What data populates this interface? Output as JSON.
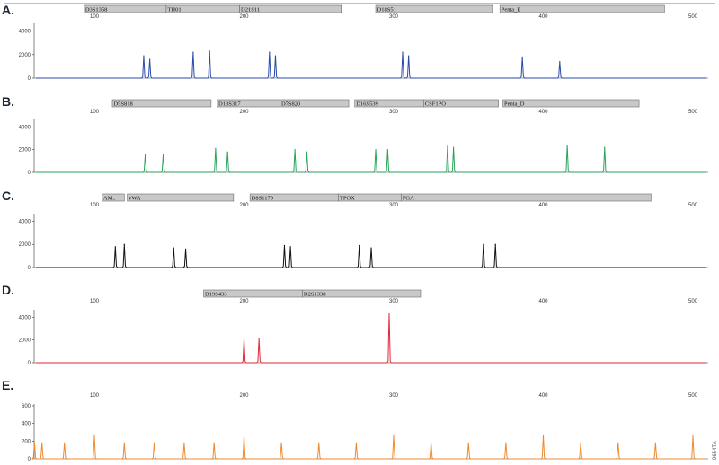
{
  "note": "9654TA",
  "chart_data": [
    {
      "type": "line",
      "panel": "A.",
      "color": "#2a4aa8",
      "x_ticks": [
        "100",
        "200",
        "300",
        "400",
        "500"
      ],
      "xlim": [
        50,
        520
      ],
      "y_ticks": [
        "4000",
        "2000",
        "0"
      ],
      "ylim": [
        0,
        4500
      ],
      "loci": [
        {
          "label": "D3S1358",
          "start": 93,
          "end": 148
        },
        {
          "label": "TH01",
          "start": 148,
          "end": 197
        },
        {
          "label": "D21S11",
          "start": 197,
          "end": 265
        },
        {
          "label": "D18S51",
          "start": 288,
          "end": 366
        },
        {
          "label": "Penta_E",
          "start": 371,
          "end": 481
        }
      ],
      "peaks": [
        {
          "x": 133,
          "y": 1900
        },
        {
          "x": 137,
          "y": 1600
        },
        {
          "x": 166,
          "y": 2200
        },
        {
          "x": 177,
          "y": 2300
        },
        {
          "x": 217,
          "y": 2200
        },
        {
          "x": 221,
          "y": 1900
        },
        {
          "x": 306,
          "y": 2200
        },
        {
          "x": 310,
          "y": 1900
        },
        {
          "x": 386,
          "y": 1800
        },
        {
          "x": 411,
          "y": 1400
        }
      ]
    },
    {
      "type": "line",
      "panel": "B.",
      "color": "#27a35a",
      "x_ticks": [
        "100",
        "200",
        "300",
        "400",
        "500"
      ],
      "xlim": [
        50,
        520
      ],
      "y_ticks": [
        "4000",
        "2000",
        "0"
      ],
      "ylim": [
        0,
        4500
      ],
      "loci": [
        {
          "label": "D5S818",
          "start": 112,
          "end": 178
        },
        {
          "label": "D13S317",
          "start": 182,
          "end": 224
        },
        {
          "label": "D7S820",
          "start": 224,
          "end": 270
        },
        {
          "label": "D16S539",
          "start": 274,
          "end": 320
        },
        {
          "label": "CSF1PO",
          "start": 320,
          "end": 370
        },
        {
          "label": "Penta_D",
          "start": 373,
          "end": 464
        }
      ],
      "peaks": [
        {
          "x": 134,
          "y": 1600
        },
        {
          "x": 146,
          "y": 1600
        },
        {
          "x": 181,
          "y": 2100
        },
        {
          "x": 189,
          "y": 1800
        },
        {
          "x": 234,
          "y": 2000
        },
        {
          "x": 242,
          "y": 1800
        },
        {
          "x": 288,
          "y": 2000
        },
        {
          "x": 296,
          "y": 2000
        },
        {
          "x": 336,
          "y": 2300
        },
        {
          "x": 340,
          "y": 2200
        },
        {
          "x": 416,
          "y": 2400
        },
        {
          "x": 441,
          "y": 2200
        }
      ]
    },
    {
      "type": "line",
      "panel": "C.",
      "color": "#111111",
      "x_ticks": [
        "100",
        "200",
        "300",
        "400",
        "500"
      ],
      "xlim": [
        50,
        520
      ],
      "y_ticks": [
        "4000",
        "2000",
        "0"
      ],
      "ylim": [
        0,
        4500
      ],
      "loci": [
        {
          "label": "AM..",
          "start": 105,
          "end": 120
        },
        {
          "label": "vWA",
          "start": 122,
          "end": 193
        },
        {
          "label": "D8S1179",
          "start": 204,
          "end": 263
        },
        {
          "label": "TPOX",
          "start": 263,
          "end": 305
        },
        {
          "label": "FGA",
          "start": 305,
          "end": 472
        }
      ],
      "peaks": [
        {
          "x": 114,
          "y": 1800
        },
        {
          "x": 120,
          "y": 2000
        },
        {
          "x": 153,
          "y": 1700
        },
        {
          "x": 161,
          "y": 1600
        },
        {
          "x": 227,
          "y": 1900
        },
        {
          "x": 231,
          "y": 1800
        },
        {
          "x": 277,
          "y": 1900
        },
        {
          "x": 285,
          "y": 1700
        },
        {
          "x": 360,
          "y": 2000
        },
        {
          "x": 368,
          "y": 2000
        }
      ]
    },
    {
      "type": "line",
      "panel": "D.",
      "color": "#e0283a",
      "x_ticks": [
        "100",
        "200",
        "300",
        "400",
        "500"
      ],
      "xlim": [
        50,
        520
      ],
      "y_ticks": [
        "4000",
        "2000",
        "0"
      ],
      "ylim": [
        0,
        4500
      ],
      "loci": [
        {
          "label": "D19S433",
          "start": 173,
          "end": 239
        },
        {
          "label": "D2S1338",
          "start": 239,
          "end": 318
        }
      ],
      "peaks": [
        {
          "x": 200,
          "y": 2100
        },
        {
          "x": 210,
          "y": 2100
        },
        {
          "x": 297,
          "y": 4300
        }
      ]
    },
    {
      "type": "line",
      "panel": "E.",
      "color": "#f08a2c",
      "x_ticks": [
        "100",
        "200",
        "300",
        "400",
        "500"
      ],
      "xlim": [
        50,
        520
      ],
      "y_ticks": [
        "600",
        "400",
        "200",
        "0"
      ],
      "ylim": [
        0,
        600
      ],
      "loci": [],
      "peaks": [
        {
          "x": 60,
          "y": 180
        },
        {
          "x": 65,
          "y": 180
        },
        {
          "x": 80,
          "y": 180
        },
        {
          "x": 100,
          "y": 260
        },
        {
          "x": 120,
          "y": 180
        },
        {
          "x": 140,
          "y": 180
        },
        {
          "x": 160,
          "y": 180
        },
        {
          "x": 180,
          "y": 180
        },
        {
          "x": 200,
          "y": 260
        },
        {
          "x": 225,
          "y": 180
        },
        {
          "x": 250,
          "y": 180
        },
        {
          "x": 275,
          "y": 180
        },
        {
          "x": 300,
          "y": 260
        },
        {
          "x": 325,
          "y": 180
        },
        {
          "x": 350,
          "y": 180
        },
        {
          "x": 375,
          "y": 180
        },
        {
          "x": 400,
          "y": 260
        },
        {
          "x": 425,
          "y": 180
        },
        {
          "x": 450,
          "y": 180
        },
        {
          "x": 475,
          "y": 180
        },
        {
          "x": 500,
          "y": 260
        }
      ]
    }
  ]
}
